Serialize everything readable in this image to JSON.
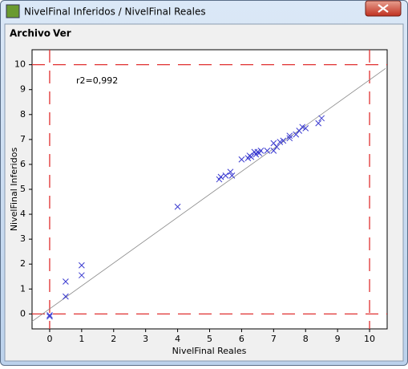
{
  "window": {
    "title": "NivelFinal Inferidos / NivelFinal Reales",
    "menu": [
      "Archivo",
      "Ver"
    ]
  },
  "chart_data": {
    "type": "scatter",
    "xlabel": "NivelFinal Reales",
    "ylabel": "NivelFinal Inferidos",
    "annotation": "r2=0,992",
    "xlim": [
      -0.55,
      10.55
    ],
    "ylim": [
      -0.6,
      10.6
    ],
    "xticks": [
      0,
      1,
      2,
      3,
      4,
      5,
      6,
      7,
      8,
      9,
      10
    ],
    "yticks": [
      0,
      1,
      2,
      3,
      4,
      5,
      6,
      7,
      8,
      9,
      10
    ],
    "color": "#3a3ad0",
    "x": [
      0,
      0,
      0.5,
      0.5,
      1,
      1,
      4,
      5.3,
      5.35,
      5.5,
      5.65,
      5.7,
      6,
      6.2,
      6.25,
      6.3,
      6.4,
      6.45,
      6.5,
      6.55,
      6.6,
      6.8,
      7,
      7,
      7.1,
      7.2,
      7.3,
      7.5,
      7.5,
      7.7,
      7.8,
      7.9,
      8,
      8.4,
      8.5
    ],
    "y": [
      -0.1,
      -0.05,
      1.3,
      0.7,
      1.95,
      1.55,
      4.3,
      5.4,
      5.5,
      5.55,
      5.7,
      5.55,
      6.2,
      6.25,
      6.35,
      6.3,
      6.5,
      6.4,
      6.5,
      6.45,
      6.55,
      6.55,
      6.55,
      6.85,
      6.7,
      6.9,
      6.95,
      7.05,
      7.15,
      7.2,
      7.35,
      7.5,
      7.45,
      7.65,
      7.85
    ],
    "fit_line": {
      "x": [
        -0.55,
        10.5
      ],
      "y": [
        -0.3,
        9.85
      ],
      "color": "#888888"
    },
    "dashed_lines": {
      "x": [
        0,
        10
      ],
      "y": [
        0,
        10
      ],
      "color": "#e03030"
    }
  }
}
